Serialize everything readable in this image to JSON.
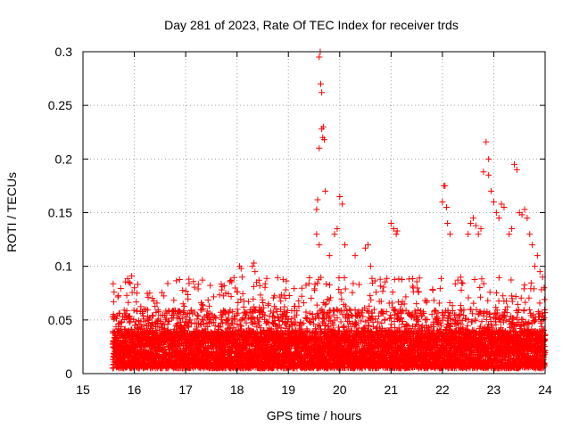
{
  "chart_data": {
    "type": "scatter",
    "title": "Day 281 of 2023, Rate Of TEC Index for receiver trds",
    "xlabel": "GPS time / hours",
    "ylabel": "ROTI / TECUs",
    "xlim": [
      15,
      24
    ],
    "ylim": [
      0,
      0.3
    ],
    "xticks": [
      "15",
      "16",
      "17",
      "18",
      "19",
      "20",
      "21",
      "22",
      "23",
      "24"
    ],
    "yticks": [
      "0",
      "0.05",
      "0.1",
      "0.15",
      "0.2",
      "0.25",
      "0.3"
    ],
    "grid": true,
    "marker": "+",
    "color": "#ff0000",
    "x_start": 15.58,
    "x_end": 24.0,
    "baseline_band": [
      0.005,
      0.04
    ],
    "series": [
      {
        "name": "ROTI",
        "x": [
          15.9,
          15.95,
          16.0,
          16.05,
          16.3,
          16.35,
          16.95,
          17.7,
          17.75,
          17.78,
          18.05,
          18.08,
          18.1,
          18.3,
          18.33,
          18.35,
          18.38,
          19.55,
          19.57,
          19.6,
          19.6,
          19.62,
          19.63,
          19.65,
          19.65,
          19.67,
          19.68,
          19.7,
          19.72,
          19.55,
          19.6,
          19.8,
          19.9,
          19.95,
          20.0,
          20.05,
          20.1,
          20.3,
          20.5,
          20.55,
          20.6,
          21.0,
          21.05,
          21.1,
          21.12,
          22.0,
          22.03,
          22.05,
          22.08,
          22.1,
          22.15,
          22.5,
          22.55,
          22.6,
          22.65,
          22.7,
          22.75,
          22.8,
          22.85,
          22.9,
          22.9,
          22.95,
          23.0,
          23.05,
          23.1,
          23.15,
          23.2,
          23.3,
          23.35,
          23.4,
          23.45,
          23.5,
          23.55,
          23.6,
          23.65,
          23.7,
          23.75,
          23.8,
          23.85,
          23.9,
          23.95,
          23.98
        ],
        "y": [
          0.085,
          0.091,
          0.08,
          0.075,
          0.075,
          0.07,
          0.065,
          0.078,
          0.082,
          0.075,
          0.1,
          0.098,
          0.09,
          0.1,
          0.103,
          0.095,
          0.085,
          0.153,
          0.162,
          0.21,
          0.295,
          0.3,
          0.27,
          0.262,
          0.228,
          0.22,
          0.23,
          0.218,
          0.17,
          0.13,
          0.12,
          0.11,
          0.13,
          0.135,
          0.165,
          0.158,
          0.12,
          0.11,
          0.117,
          0.12,
          0.1,
          0.14,
          0.135,
          0.13,
          0.133,
          0.16,
          0.175,
          0.175,
          0.155,
          0.14,
          0.13,
          0.13,
          0.14,
          0.145,
          0.138,
          0.13,
          0.135,
          0.188,
          0.216,
          0.2,
          0.185,
          0.17,
          0.16,
          0.15,
          0.145,
          0.158,
          0.155,
          0.13,
          0.135,
          0.195,
          0.19,
          0.15,
          0.148,
          0.153,
          0.145,
          0.13,
          0.12,
          0.1,
          0.11,
          0.095,
          0.09,
          0.08
        ]
      }
    ]
  }
}
